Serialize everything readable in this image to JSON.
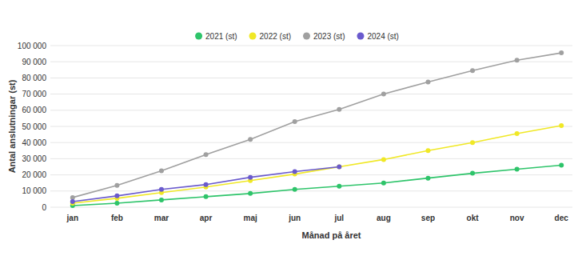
{
  "chart_data": {
    "type": "line",
    "x_label": "Månad på året",
    "y_label": "Antal anslutningar (st)",
    "categories": [
      "jan",
      "feb",
      "mar",
      "apr",
      "maj",
      "jun",
      "jul",
      "aug",
      "sep",
      "okt",
      "nov",
      "dec"
    ],
    "series": [
      {
        "name": "2021 (st)",
        "color": "#2ec46a",
        "values": [
          1000,
          2500,
          4500,
          6500,
          8500,
          11000,
          13000,
          15000,
          18000,
          21000,
          23500,
          26000
        ]
      },
      {
        "name": "2022 (st)",
        "color": "#f0e826",
        "values": [
          2500,
          5500,
          9000,
          12500,
          16500,
          20500,
          25000,
          29500,
          35000,
          40000,
          45500,
          50500
        ]
      },
      {
        "name": "2023 (st)",
        "color": "#a0a0a0",
        "values": [
          6000,
          13500,
          22500,
          32500,
          42000,
          53000,
          60500,
          70000,
          77500,
          84500,
          91000,
          95500
        ]
      },
      {
        "name": "2024 (st)",
        "color": "#6a5acd",
        "values": [
          3500,
          7000,
          11000,
          14000,
          18500,
          22000,
          25000,
          null,
          null,
          null,
          null,
          null
        ]
      }
    ],
    "ylim": [
      0,
      100000
    ],
    "yticks": [
      0,
      {
        "value": 10000,
        "label": "10 000"
      },
      {
        "value": 20000,
        "label": "20 000"
      },
      {
        "value": 30000,
        "label": "30 000"
      },
      {
        "value": 40000,
        "label": "40 000"
      },
      {
        "value": 50000,
        "label": "50 000"
      },
      {
        "value": 60000,
        "label": "60 000"
      },
      {
        "value": 70000,
        "label": "70 000"
      },
      {
        "value": 80000,
        "label": "80 000"
      },
      {
        "value": 90000,
        "label": "90 000"
      },
      {
        "value": 100000,
        "label": "100 000"
      }
    ],
    "grid": true,
    "legend": "top",
    "marker": "circle",
    "line_style": "solid"
  }
}
